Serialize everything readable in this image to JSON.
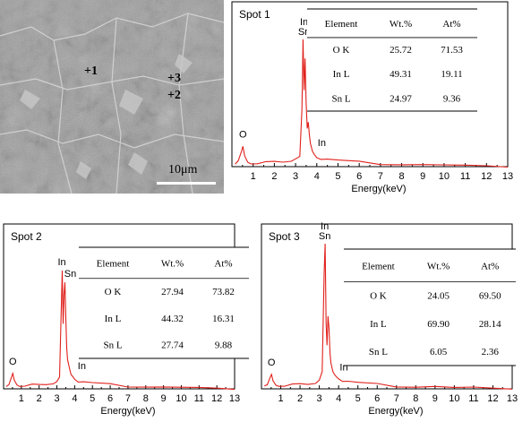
{
  "sem_image": {
    "markers": [
      {
        "label": "+1"
      },
      {
        "label": "+3"
      },
      {
        "label": "+2"
      }
    ],
    "scale_bar": {
      "label": "10μm"
    }
  },
  "chart_data": [
    {
      "type": "line",
      "title": "Spot 1",
      "xlabel": "Energy(keV)",
      "ylabel": "",
      "xlim": [
        0,
        13
      ],
      "xticks": [
        1,
        2,
        3,
        4,
        5,
        6,
        7,
        8,
        9,
        10,
        11,
        12,
        13
      ],
      "peaks": [
        {
          "label": "O",
          "energy": 0.52
        },
        {
          "label": "In\nSn",
          "energy": 3.4
        },
        {
          "label": "In",
          "energy": 3.9
        }
      ],
      "spectrum": {
        "x": [
          0.15,
          0.3,
          0.45,
          0.52,
          0.6,
          0.75,
          0.9,
          1.2,
          1.6,
          2.0,
          2.4,
          2.8,
          3.0,
          3.2,
          3.3,
          3.35,
          3.4,
          3.45,
          3.5,
          3.55,
          3.6,
          3.65,
          3.7,
          3.8,
          3.9,
          4.0,
          4.2,
          4.5,
          5,
          6,
          7,
          8,
          9,
          10,
          11,
          12,
          13
        ],
        "y": [
          0.02,
          0.06,
          0.12,
          0.16,
          0.09,
          0.04,
          0.03,
          0.025,
          0.03,
          0.035,
          0.035,
          0.04,
          0.05,
          0.08,
          0.45,
          1.0,
          0.6,
          0.85,
          0.5,
          0.3,
          0.35,
          0.25,
          0.18,
          0.12,
          0.08,
          0.06,
          0.05,
          0.045,
          0.04,
          0.035,
          0.03,
          0.025,
          0.02,
          0.02,
          0.015,
          0.015,
          0.01
        ]
      },
      "table": {
        "headers": [
          "Element",
          "Wt.%",
          "At%"
        ],
        "rows": [
          [
            "O K",
            "25.72",
            "71.53"
          ],
          [
            "In L",
            "49.31",
            "19.11"
          ],
          [
            "Sn L",
            "24.97",
            "9.36"
          ]
        ]
      }
    },
    {
      "type": "line",
      "title": "Spot 2",
      "xlabel": "Energy(keV)",
      "ylabel": "",
      "xlim": [
        0,
        13
      ],
      "xticks": [
        1,
        2,
        3,
        4,
        5,
        6,
        7,
        8,
        9,
        10,
        11,
        12,
        13
      ],
      "peaks": [
        {
          "label": "O",
          "energy": 0.52
        },
        {
          "label": "In",
          "energy": 3.28
        },
        {
          "label": "Sn",
          "energy": 3.45
        },
        {
          "label": "In",
          "energy": 3.9
        }
      ],
      "spectrum": {
        "x": [
          0.15,
          0.3,
          0.45,
          0.52,
          0.6,
          0.75,
          0.9,
          1.2,
          1.6,
          2.0,
          2.4,
          2.8,
          3.0,
          3.15,
          3.25,
          3.3,
          3.35,
          3.4,
          3.45,
          3.5,
          3.55,
          3.6,
          3.7,
          3.8,
          3.9,
          4.0,
          4.2,
          4.5,
          5,
          6,
          7,
          8,
          9,
          10,
          11,
          12,
          13
        ],
        "y": [
          0.02,
          0.05,
          0.1,
          0.13,
          0.08,
          0.04,
          0.03,
          0.025,
          0.03,
          0.03,
          0.035,
          0.04,
          0.05,
          0.1,
          0.7,
          1.0,
          0.55,
          0.8,
          0.9,
          0.6,
          0.35,
          0.25,
          0.18,
          0.12,
          0.09,
          0.07,
          0.05,
          0.045,
          0.04,
          0.035,
          0.03,
          0.025,
          0.02,
          0.02,
          0.015,
          0.015,
          0.01
        ]
      },
      "table": {
        "headers": [
          "Element",
          "Wt.%",
          "At%"
        ],
        "rows": [
          [
            "O K",
            "27.94",
            "73.82"
          ],
          [
            "In L",
            "44.32",
            "16.31"
          ],
          [
            "Sn L",
            "27.74",
            "9.88"
          ]
        ]
      }
    },
    {
      "type": "line",
      "title": "Spot 3",
      "xlabel": "Energy(keV)",
      "ylabel": "",
      "xlim": [
        0,
        13
      ],
      "xticks": [
        1,
        2,
        3,
        4,
        5,
        6,
        7,
        8,
        9,
        10,
        11,
        12,
        13
      ],
      "peaks": [
        {
          "label": "O",
          "energy": 0.52
        },
        {
          "label": "In\nSn",
          "energy": 3.28
        },
        {
          "label": "In",
          "energy": 3.9
        }
      ],
      "spectrum": {
        "x": [
          0.15,
          0.3,
          0.45,
          0.52,
          0.6,
          0.75,
          0.9,
          1.2,
          1.6,
          2.0,
          2.4,
          2.8,
          3.0,
          3.15,
          3.25,
          3.3,
          3.35,
          3.4,
          3.45,
          3.5,
          3.55,
          3.6,
          3.7,
          3.8,
          3.9,
          4.0,
          4.2,
          4.5,
          5,
          6,
          7,
          8,
          9,
          10,
          11,
          12,
          13
        ],
        "y": [
          0.02,
          0.04,
          0.08,
          0.1,
          0.06,
          0.03,
          0.025,
          0.02,
          0.025,
          0.03,
          0.03,
          0.035,
          0.05,
          0.12,
          0.8,
          1.0,
          0.45,
          0.3,
          0.5,
          0.42,
          0.25,
          0.18,
          0.12,
          0.09,
          0.07,
          0.06,
          0.045,
          0.04,
          0.035,
          0.03,
          0.025,
          0.02,
          0.02,
          0.015,
          0.015,
          0.012,
          0.01
        ]
      },
      "table": {
        "headers": [
          "Element",
          "Wt.%",
          "At%"
        ],
        "rows": [
          [
            "O K",
            "24.05",
            "69.50"
          ],
          [
            "In L",
            "69.90",
            "28.14"
          ],
          [
            "Sn L",
            "6.05",
            "2.36"
          ]
        ]
      }
    }
  ]
}
